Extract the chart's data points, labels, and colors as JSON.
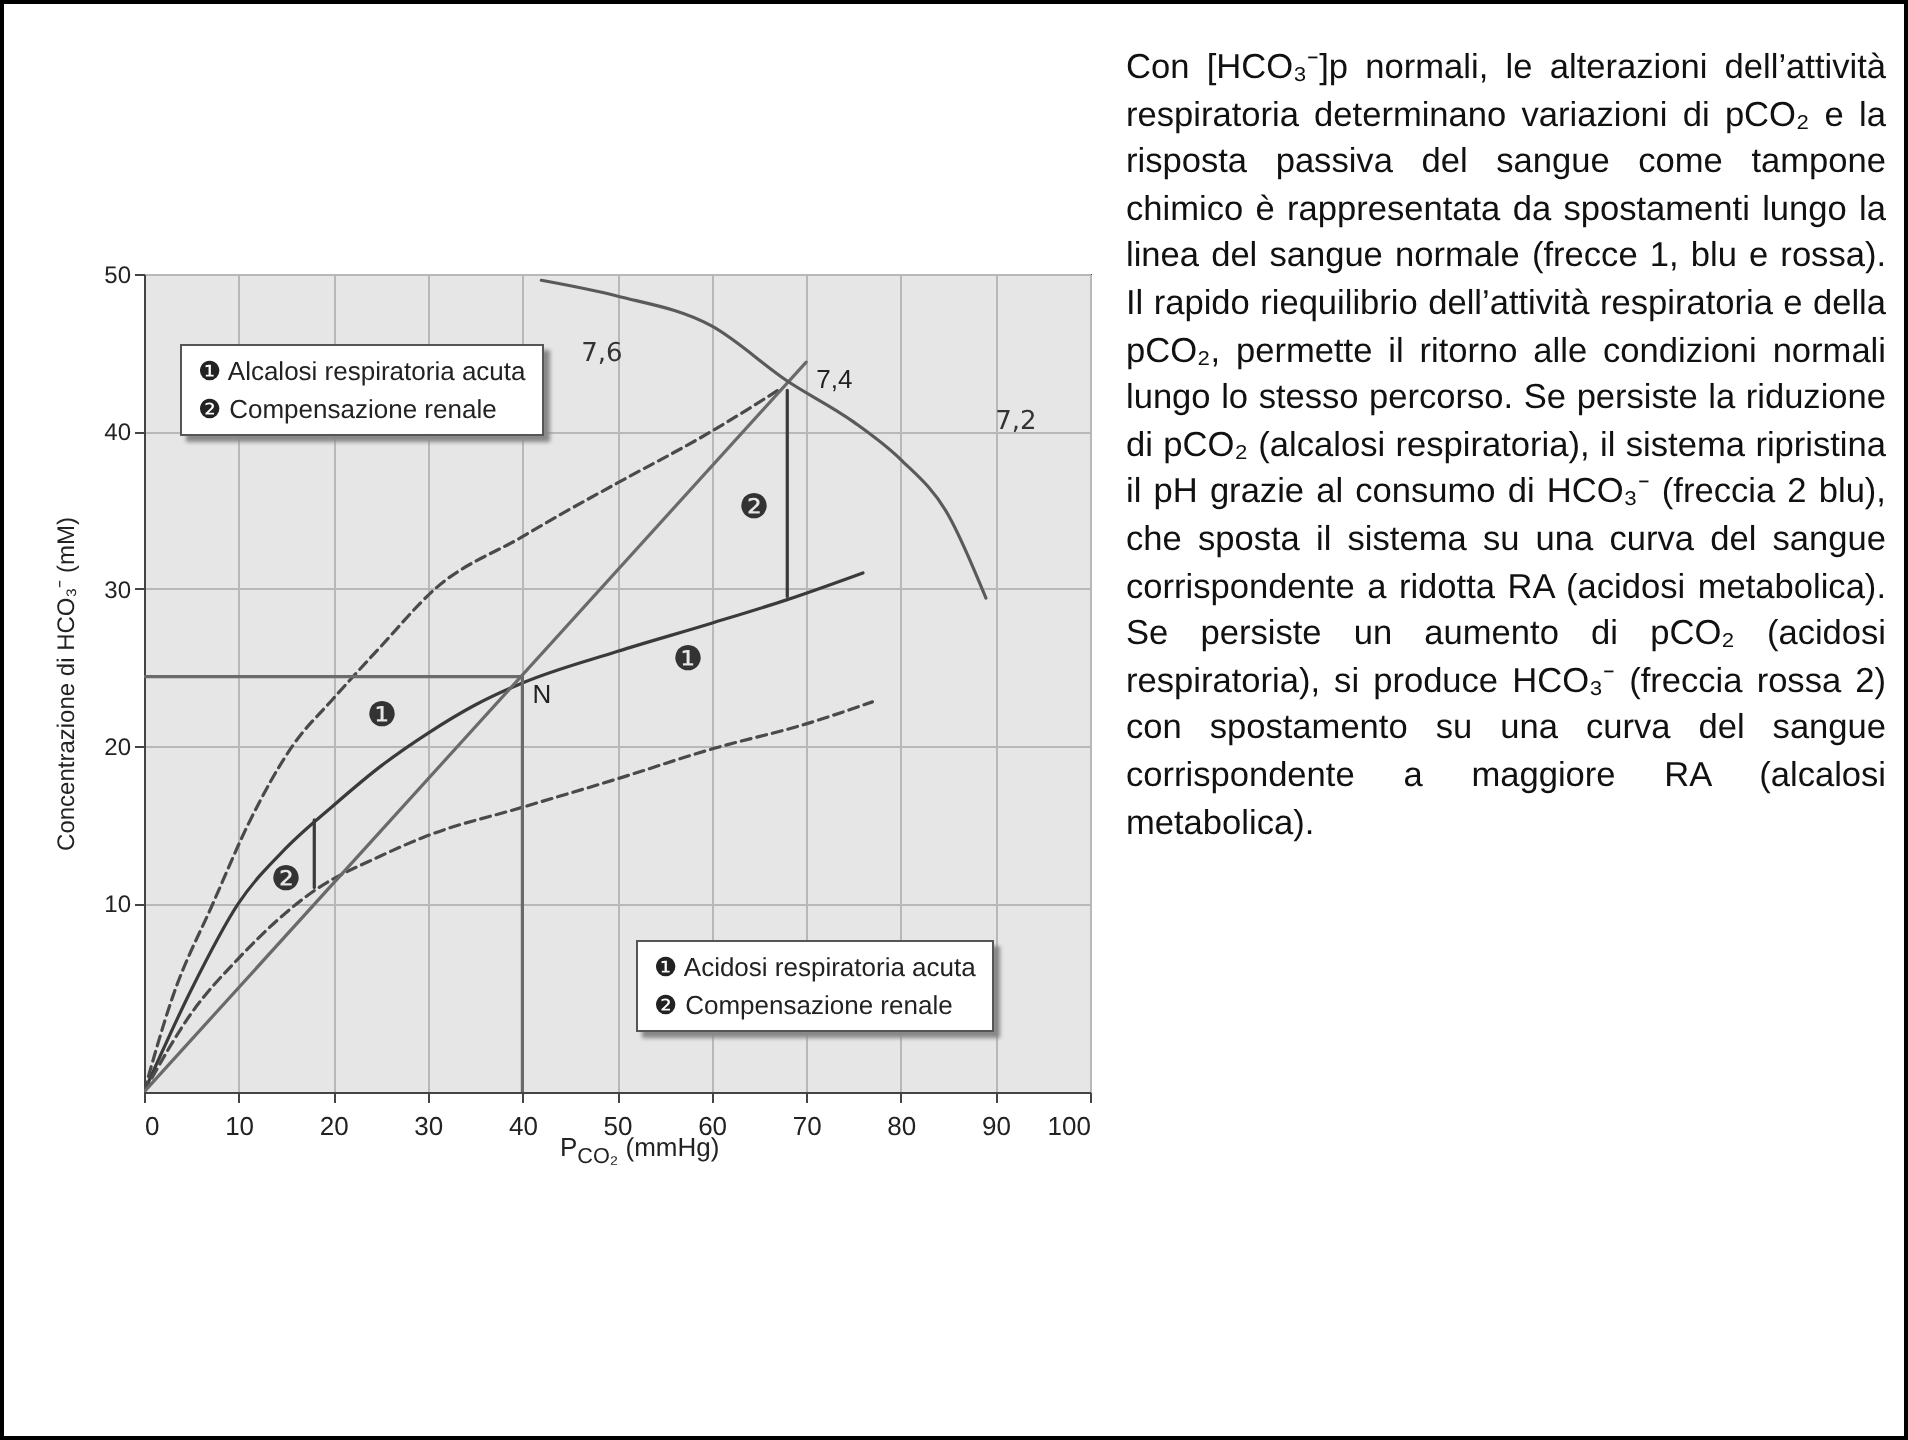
{
  "chart_data": {
    "type": "line",
    "xlabel": "P$_{CO₂}$ (mmHg)",
    "ylabel": "Concentrazione di HCO₃⁻ (mM)",
    "xlim": [
      0,
      100
    ],
    "ylim": [
      -2,
      50
    ],
    "xticks": [
      0,
      10,
      20,
      30,
      40,
      50,
      60,
      70,
      80,
      90,
      100
    ],
    "yticks": [
      10,
      20,
      30,
      40,
      50
    ],
    "grid": true,
    "series": [
      {
        "color": "#3a3a3a",
        "line_style": "solid",
        "x": [
          0,
          5,
          10,
          15,
          20,
          25,
          30,
          35,
          40,
          50,
          60,
          68,
          76
        ],
        "values": [
          -2,
          4.5,
          10,
          13.5,
          16.2,
          18.7,
          20.8,
          22.6,
          24,
          26,
          27.8,
          29.3,
          31
        ]
      },
      {
        "type": "line",
        "color": "#4a4a4a",
        "line_style": "dashed",
        "x": [
          0,
          3,
          7.3,
          11,
          15.7,
          20,
          25,
          30.8,
          40,
          44,
          50,
          60,
          67
        ],
        "values": [
          -2,
          4,
          10,
          15,
          20,
          23,
          26.3,
          30,
          33.3,
          34.7,
          36.7,
          40,
          42.6
        ]
      },
      {
        "type": "line",
        "color": "#4a4a4a",
        "line_style": "dashed",
        "x": [
          0,
          5,
          10,
          18,
          25,
          30,
          40,
          50,
          60,
          70,
          77
        ],
        "values": [
          -2,
          3,
          6.5,
          10.8,
          13,
          14.3,
          16.1,
          17.9,
          19.8,
          21.4,
          22.8
        ]
      },
      {
        "type": "line",
        "color": "#6a6a6a",
        "line_style": "solid",
        "x": [
          0,
          70
        ],
        "values": [
          -2,
          44.4
        ]
      },
      {
        "type": "line",
        "color": "#5a5a5a",
        "line_style": "solid",
        "x": [
          42,
          50,
          60,
          68,
          75,
          80,
          85,
          89
        ],
        "values": [
          49.6,
          48.6,
          46.7,
          43.2,
          40.6,
          38.2,
          34.7,
          29.4
        ]
      },
      {
        "type": "line",
        "color": "#6a6a6a",
        "line_style": "solid",
        "x": [
          0,
          40
        ],
        "values": [
          24.4,
          24.4
        ]
      },
      {
        "type": "line",
        "color": "#6a6a6a",
        "line_style": "solid",
        "x": [
          40,
          40
        ],
        "values": [
          -2,
          24.4
        ]
      },
      {
        "type": "line",
        "color": "#3a3a3a",
        "line_style": "solid",
        "x": [
          18,
          18
        ],
        "values": [
          15.3,
          11
        ]
      },
      {
        "type": "line",
        "color": "#3a3a3a",
        "line_style": "solid",
        "x": [
          68,
          68
        ],
        "values": [
          29.5,
          42.6
        ]
      }
    ],
    "annotations": [
      "❶ Alcalosi respiratoria acuta",
      "❷ Compensazione renale",
      "❶ Acidosi respiratoria acuta",
      "❷ Compensazione renale",
      "Con [HCO₃⁻]p normali, le alterazioni dell’attività respiratoria determinano variazioni di pCO₂ e la risposta passiva del sangue come tampone chimico è rappresentata da spostamenti lungo la linea del sangue normale (frecce 1, blu e rossa). Il rapido riequilibrio dell’attività respiratoria e della pCO₂, permette il ritorno alle condizioni normali lungo lo stesso percorso. Se persiste la riduzione di pCO₂ (alcalosi respiratoria), il sistema ripristina il pH grazie al consumo di HCO₃⁻ (freccia 2 blu), che sposta il sistema su una curva del sangue corrispondente a ridotta RA (acidosi metabolica). Se persiste un aumento di pCO₂ (acidosi respiratoria), si produce HCO₃⁻ (freccia rossa 2) con spostamento su una curva del sangue corrispondente a maggiore RA (alcalosi metabolica).",
      "7,6",
      "7,2",
      "❶",
      "❷",
      "❶",
      "❷",
      {
        "text": "7,4",
        "x": 70,
        "y": 44.4
      },
      {
        "text": "N",
        "x": 40,
        "y": 24.4
      }
    ]
  }
}
